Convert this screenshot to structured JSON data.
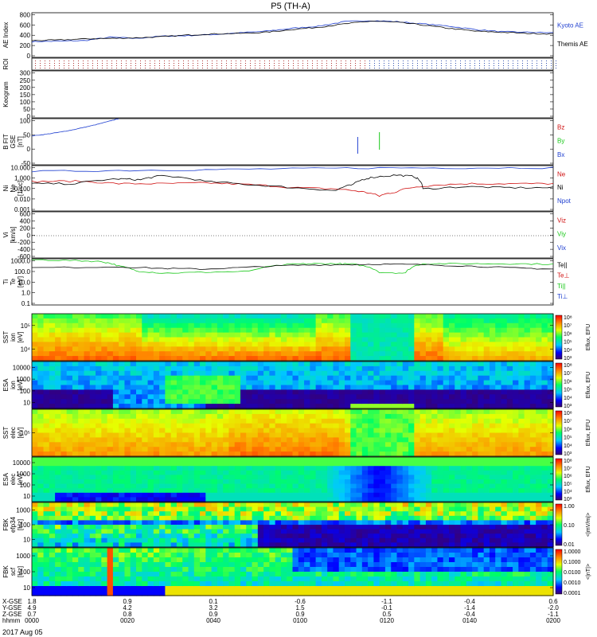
{
  "title": "P5 (TH-A)",
  "footer_date": "2017 Aug 05",
  "chart_data": {
    "type": "multi-panel",
    "x": {
      "labels": [
        "hhmm",
        "0000",
        "0020",
        "0040",
        "0100",
        "0120",
        "0140",
        "0200"
      ],
      "rows": [
        {
          "label": "X-GSE",
          "values": [
            "1.8",
            "0.9",
            "0.1",
            "-0.6",
            "-1.1",
            "-0.4",
            "0.6"
          ]
        },
        {
          "label": "Y-GSE",
          "values": [
            "4.9",
            "4.2",
            "3.2",
            "1.5",
            "-0.1",
            "-1.4",
            "-2.0"
          ]
        },
        {
          "label": "Z-GSE",
          "values": [
            "0.7",
            "0.8",
            "0.9",
            "0.9",
            "0.5",
            "-0.4",
            "-1.1"
          ]
        }
      ]
    },
    "panels": [
      {
        "name": "ae",
        "ylabel": [
          "AE Index"
        ],
        "ylim": [
          0,
          800
        ],
        "ticks": [
          "0",
          "200",
          "400",
          "600",
          "800"
        ],
        "legend": [
          {
            "text": "Kyoto AE",
            "color": "#1f3fd0"
          },
          {
            "text": "Themis AE",
            "color": "#000000"
          }
        ],
        "series": [
          {
            "name": "Kyoto AE",
            "color": "#1f3fd0",
            "t": [
              0,
              6,
              12,
              18,
              24,
              30,
              36,
              42,
              48,
              54,
              60,
              66,
              72,
              78,
              84,
              90,
              96,
              102,
              108,
              114,
              120
            ],
            "v": [
              280,
              290,
              300,
              360,
              340,
              380,
              390,
              410,
              440,
              470,
              520,
              560,
              640,
              660,
              640,
              600,
              560,
              500,
              460,
              450,
              440
            ]
          },
          {
            "name": "Themis AE",
            "color": "#000000",
            "t": [
              0,
              6,
              12,
              18,
              24,
              30,
              36,
              42,
              48,
              54,
              60,
              66,
              72,
              78,
              84,
              90,
              96,
              102,
              108,
              114,
              120
            ],
            "v": [
              300,
              310,
              330,
              340,
              350,
              370,
              400,
              420,
              430,
              450,
              500,
              540,
              600,
              650,
              630,
              580,
              520,
              470,
              450,
              430,
              420
            ]
          }
        ]
      },
      {
        "name": "roi",
        "ylabel": [
          "ROI"
        ]
      },
      {
        "name": "keogram",
        "ylabel": [
          "Keogram"
        ],
        "ticks": [
          "0",
          "50",
          "100",
          "150",
          "200",
          "250",
          "300"
        ]
      },
      {
        "name": "bfield",
        "ylabel": [
          "B FIT",
          "GSE",
          "[nT]"
        ],
        "ylim": [
          -100,
          100
        ],
        "ticks": [
          "-50",
          "0",
          "50",
          "100"
        ],
        "legend": [
          {
            "text": "Bz",
            "color": "#d01010"
          },
          {
            "text": "By",
            "color": "#1ac81a"
          },
          {
            "text": "Bx",
            "color": "#1f3fd0"
          }
        ],
        "series": [
          {
            "name": "Bx",
            "color": "#1f3fd0",
            "t": [
              0,
              3,
              6,
              9,
              12,
              15,
              18,
              20
            ],
            "v": [
              25,
              32,
              40,
              50,
              62,
              75,
              90,
              100
            ]
          }
        ]
      },
      {
        "name": "density",
        "ylabel": [
          "Ni",
          "Ne",
          "[1/cc]"
        ],
        "ticks": [
          "0.001",
          "0.010",
          "0.100",
          "1.000",
          "10.000"
        ],
        "legend": [
          {
            "text": "Ne",
            "color": "#d01010"
          },
          {
            "text": "Ni",
            "color": "#000000"
          },
          {
            "text": "Npot",
            "color": "#1f3fd0"
          }
        ],
        "series": [
          {
            "name": "Npot",
            "color": "#1f3fd0",
            "t": [
              0,
              20,
              40,
              60,
              80,
              100,
              120
            ],
            "v": [
              8,
              10,
              12,
              15,
              18,
              18,
              19
            ]
          },
          {
            "name": "Ne",
            "color": "#d01010",
            "t": [
              0,
              10,
              20,
              30,
              40,
              50,
              60,
              70,
              76,
              80,
              84,
              90,
              100,
              110,
              120
            ],
            "v": [
              0.8,
              0.9,
              0.5,
              0.5,
              0.6,
              0.4,
              0.2,
              0.15,
              0.08,
              0.03,
              0.08,
              0.3,
              0.5,
              0.5,
              0.5
            ]
          },
          {
            "name": "Ni",
            "color": "#000000",
            "t": [
              0,
              10,
              20,
              25,
              30,
              40,
              50,
              60,
              70,
              74,
              78,
              84,
              88,
              90,
              100,
              110,
              120
            ],
            "v": [
              0.5,
              0.5,
              1.5,
              1.2,
              3.0,
              0.8,
              0.4,
              0.2,
              0.1,
              0.4,
              2.0,
              3.5,
              2.5,
              0.15,
              0.25,
              0.2,
              0.2
            ]
          }
        ]
      },
      {
        "name": "velocity",
        "ylabel": [
          "Vi",
          "[km/s]"
        ],
        "ticks": [
          "-600",
          "-400",
          "-200",
          "0",
          "200",
          "400",
          "600"
        ],
        "legend": [
          {
            "text": "Viz",
            "color": "#d01010"
          },
          {
            "text": "Viy",
            "color": "#1ac81a"
          },
          {
            "text": "Vix",
            "color": "#1f3fd0"
          }
        ]
      },
      {
        "name": "temperature",
        "ylabel": [
          "Ti",
          "Te",
          "[eV]"
        ],
        "ticks": [
          "0.1",
          "1.0",
          "10.0",
          "100.0",
          "1000.0"
        ],
        "legend": [
          {
            "text": "Te||",
            "color": "#000000"
          },
          {
            "text": "Te⊥",
            "color": "#d01010"
          },
          {
            "text": "Ti||",
            "color": "#1ac81a"
          },
          {
            "text": "Ti⊥",
            "color": "#1f3fd0"
          }
        ],
        "series": [
          {
            "name": "Ti||",
            "color": "#1ac81a",
            "t": [
              0,
              10,
              16,
              20,
              24,
              30,
              40,
              50,
              60,
              65,
              70,
              74,
              80,
              86,
              90,
              100,
              110,
              120
            ],
            "v": [
              2500,
              2000,
              1600,
              600,
              200,
              120,
              150,
              180,
              900,
              1000,
              1000,
              900,
              150,
              120,
              1000,
              1000,
              1000,
              900
            ]
          },
          {
            "name": "Te||",
            "color": "#000000",
            "t": [
              0,
              20,
              30,
              40,
              50,
              60,
              70,
              80,
              90,
              100,
              110,
              120
            ],
            "v": [
              400,
              500,
              350,
              300,
              450,
              700,
              800,
              900,
              800,
              600,
              400,
              300
            ]
          }
        ]
      },
      {
        "name": "sst-ion",
        "ylabel": [
          "SST",
          "ion",
          "[eV]"
        ],
        "ticks": [
          "10⁴",
          "10⁵"
        ],
        "colorbar": {
          "label": "Eflux, EFU",
          "ticks": [
            "10³",
            "10⁴",
            "10⁵",
            "10⁶",
            "10⁷",
            "10⁸"
          ]
        }
      },
      {
        "name": "esa-ion",
        "ylabel": [
          "ESA",
          "ion",
          "[eV]"
        ],
        "ticks": [
          "10",
          "100",
          "1000",
          "10000"
        ],
        "colorbar": {
          "label": "Eflux, EFU",
          "ticks": [
            "10³",
            "10⁴",
            "10⁵",
            "10⁶",
            "10⁷",
            "10⁸"
          ]
        }
      },
      {
        "name": "sst-elec",
        "ylabel": [
          "SST",
          "elec",
          "[eV]"
        ],
        "ticks": [
          "10⁵"
        ],
        "colorbar": {
          "label": "Eflux, EFU",
          "ticks": [
            "10³",
            "10⁴",
            "10⁵",
            "10⁶",
            "10⁷",
            "10⁸"
          ]
        }
      },
      {
        "name": "esa-elec",
        "ylabel": [
          "ESA",
          "elec",
          "[eV]"
        ],
        "ticks": [
          "10",
          "100",
          "1000",
          "10000"
        ],
        "colorbar": {
          "label": "Eflux, EFU",
          "ticks": [
            "10³",
            "10⁴",
            "10⁵",
            "10⁶",
            "10⁷",
            "10⁸"
          ]
        }
      },
      {
        "name": "fbk-e",
        "ylabel": [
          "FBK",
          "efp34",
          "[Hz]"
        ],
        "ticks": [
          "10",
          "100",
          "1000"
        ],
        "colorbar": {
          "label": "<|mV/m|>",
          "ticks": [
            "0.01",
            "0.10",
            "1.00"
          ]
        }
      },
      {
        "name": "fbk-b",
        "ylabel": [
          "FBK",
          "scf",
          "[Hz]"
        ],
        "ticks": [
          "10",
          "100",
          "1000"
        ],
        "colorbar": {
          "label": "<|nT|>",
          "ticks": [
            "0.0001",
            "0.0010",
            "0.0100",
            "0.1000",
            "1.0000"
          ]
        }
      }
    ]
  }
}
